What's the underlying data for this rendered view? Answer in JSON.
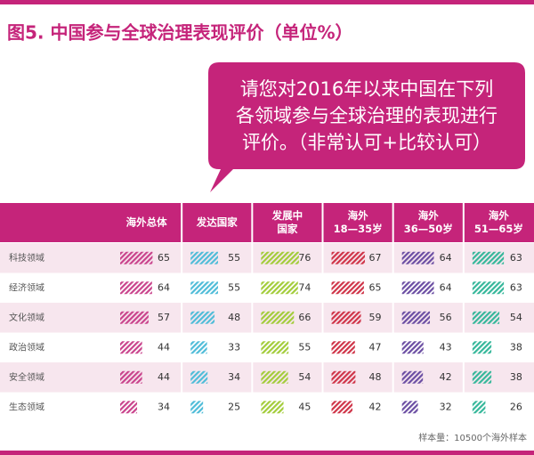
{
  "header": {
    "title": "图5. 中国参与全球治理表现评价（单位%）"
  },
  "callout": {
    "lines": [
      "请您对2016年以来中国在下列",
      "各领域参与全球治理的表现进行",
      "评价。（非常认可+比较认可）"
    ]
  },
  "table": {
    "columns": [
      {
        "lines": [
          "海外总体"
        ],
        "color": "#c9438c"
      },
      {
        "lines": [
          "发达国家"
        ],
        "color": "#4fbcd8"
      },
      {
        "lines": [
          "发展中",
          "国家"
        ],
        "color": "#a3cc3a"
      },
      {
        "lines": [
          "海外",
          "18—35岁"
        ],
        "color": "#cf3448"
      },
      {
        "lines": [
          "海外",
          "36—50岁"
        ],
        "color": "#6b4ea3"
      },
      {
        "lines": [
          "海外",
          "51—65岁"
        ],
        "color": "#35b79a"
      }
    ],
    "rows": [
      {
        "label": "科技领域",
        "values": [
          65,
          55,
          76,
          67,
          64,
          63
        ]
      },
      {
        "label": "经济领域",
        "values": [
          64,
          55,
          74,
          65,
          64,
          63
        ]
      },
      {
        "label": "文化领域",
        "values": [
          57,
          48,
          66,
          59,
          56,
          54
        ]
      },
      {
        "label": "政治领域",
        "values": [
          44,
          33,
          55,
          47,
          43,
          38
        ]
      },
      {
        "label": "安全领域",
        "values": [
          44,
          34,
          54,
          48,
          42,
          38
        ]
      },
      {
        "label": "生态领域",
        "values": [
          34,
          25,
          45,
          42,
          32,
          26
        ]
      }
    ]
  },
  "footer": {
    "note": "样本量：10500个海外样本"
  }
}
